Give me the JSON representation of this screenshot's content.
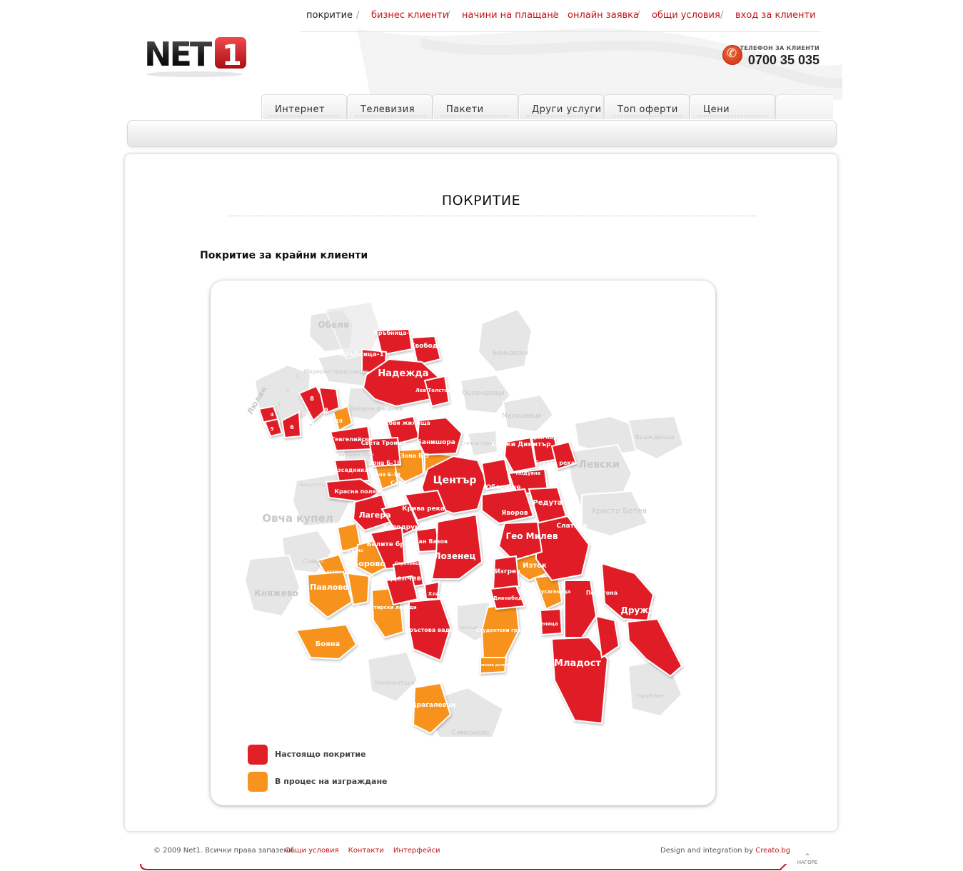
{
  "topnav": {
    "items": [
      {
        "label": "покритие",
        "active": true
      },
      {
        "label": "бизнес клиенти"
      },
      {
        "label": "начини на плащане"
      },
      {
        "label": "онлайн заявка"
      },
      {
        "label": "общи условия"
      },
      {
        "label": "вход за клиенти"
      }
    ],
    "separator": "/"
  },
  "logo": {
    "text": "NET",
    "number": "1"
  },
  "phone": {
    "caption": "ТЕЛЕФОН ЗА КЛИЕНТИ",
    "number": "0700 35 035"
  },
  "tabs": [
    "Интернет",
    "Телевизия",
    "Пакети",
    "Други услуги",
    "Топ оферти",
    "Цени"
  ],
  "page": {
    "title": "ПОКРИТИЕ",
    "section_title": "Покритие за крайни клиенти"
  },
  "map": {
    "colors": {
      "covered": "#e01f26",
      "building": "#f7931e",
      "inactive": "#e4e4e4"
    },
    "legend": [
      {
        "label": "Настоящо покритие",
        "status": "covered"
      },
      {
        "label": "В процес на изграждане",
        "status": "building"
      }
    ],
    "labels": {
      "covered": [
        "Връбница-2",
        "Свобода",
        "Връбница-1",
        "Надежда",
        "Лев Толстой",
        "8",
        "9",
        "4",
        "5",
        "6",
        "Гевгелийски",
        "Фондови жилища",
        "Света Троица",
        "Банишора",
        "Разсадника",
        "Зона Б-18",
        "Сердика",
        "Красна поляна",
        "Център",
        "Хаджи Димитър",
        "Стефан Караджа",
        "Сухата река",
        "Подуяне",
        "Оборище",
        "Редута",
        "Яворов",
        "Слатина",
        "Гео Милев",
        "Лагера",
        "Хиподрума",
        "Крива река",
        "Иван Вазов",
        "Белите брези",
        "Лозенец",
        "Стрелбище",
        "Гоце Делчев",
        "Изгрев",
        "Дианабад",
        "Хладилника",
        "Кръстова вада",
        "Полигона",
        "Дружба",
        "Дървеница",
        "Младост"
      ],
      "building": [
        "10",
        "Зона Б-5",
        "Зона Б-19",
        "Красно село",
        "Борово",
        "Бъкстон",
        "Павлово",
        "Манастирски ливади",
        "Бояна",
        "Изток",
        "Мусагеница",
        "Студентски град",
        "Малинова долина",
        "Драгалевци"
      ],
      "inactive": [
        "Обеля",
        "Модерно предградие",
        "Захарна фабрика",
        "Люлин",
        "1",
        "2",
        "3",
        "7",
        "Бенковски",
        "Орландовци",
        "Малашевци",
        "Вражденца",
        "Левски",
        "Сточна гара",
        "Христо Ботев",
        "Западен парк",
        "Факултета",
        "Овча купел",
        "Славия",
        "Княжево",
        "Витоша",
        "Кинocентъра",
        "Симеоново",
        "Горубляне"
      ]
    }
  },
  "footer": {
    "copyright": "© 2009 Net1. Всички права запазени.",
    "links": [
      "Общи условия",
      "Контакти",
      "Интерфейси"
    ],
    "credit_prefix": "Design and integration by",
    "credit_link": "Creato.bg",
    "to_top": "НАГОРЕ"
  }
}
